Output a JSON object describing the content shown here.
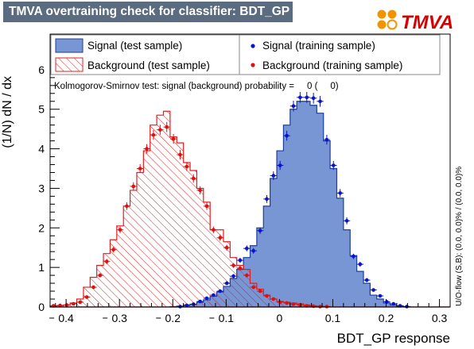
{
  "title": "TMVA overtraining check for classifier: BDT_GP",
  "logo_text": "TMVA",
  "colors": {
    "signal_fill": "#7796d3",
    "signal_line": "#1c3f9a",
    "background_line": "#e02020",
    "signal_points": "#0a14c8",
    "background_points": "#e01010",
    "title_bg": "#5b6b80",
    "logo_orange": "#f29400",
    "logo_red": "#d60000"
  },
  "chart_data": {
    "type": "histogram",
    "xlabel": "BDT_GP response",
    "ylabel": "(1/N) dN / dx",
    "xlim": [
      -0.43,
      0.32
    ],
    "ylim": [
      0,
      6.9
    ],
    "x_ticks": [
      "0.4",
      "0.3",
      "0.2",
      "0.1",
      "0",
      "0.1",
      "0.2",
      "0.3"
    ],
    "x_tick_values": [
      -0.4,
      -0.3,
      -0.2,
      -0.1,
      0,
      0.1,
      0.2,
      0.3
    ],
    "y_ticks": [
      "0",
      "1",
      "2",
      "3",
      "4",
      "5",
      "6"
    ],
    "y_tick_values": [
      0,
      1,
      2,
      3,
      4,
      5,
      6
    ],
    "bin_edges_start": -0.43,
    "bin_width": 0.0125,
    "legend": [
      {
        "label": "Signal (test sample)",
        "style": "filled-box"
      },
      {
        "label": "Signal (training sample)",
        "style": "marker"
      },
      {
        "label": "Background (test sample)",
        "style": "hatched-box"
      },
      {
        "label": "Background (training sample)",
        "style": "marker"
      }
    ],
    "ks_text": "Kolmogorov-Smirnov test: signal (background) probability =     0 (     0)",
    "side_text": "U/O-flow (S,B): (0.0, 0.0)% / (0.0, 0.0)%",
    "series": [
      {
        "name": "Signal (test sample)",
        "values": [
          0,
          0,
          0,
          0,
          0,
          0,
          0,
          0,
          0,
          0,
          0,
          0,
          0,
          0,
          0,
          0,
          0,
          0,
          0.01,
          0.02,
          0.05,
          0.07,
          0.12,
          0.18,
          0.27,
          0.38,
          0.52,
          0.72,
          0.95,
          1.25,
          1.55,
          2.0,
          2.55,
          3.25,
          3.95,
          4.6,
          5.0,
          5.2,
          5.2,
          5.1,
          4.9,
          4.2,
          3.5,
          2.75,
          1.95,
          1.3,
          0.9,
          0.6,
          0.3,
          0.2,
          0.1,
          0.05,
          0.02,
          0.01,
          0,
          0,
          0,
          0,
          0,
          0
        ]
      },
      {
        "name": "Background (test sample)",
        "values": [
          0.02,
          0.03,
          0.05,
          0.1,
          0.2,
          0.5,
          0.75,
          1.05,
          1.35,
          1.7,
          2.05,
          2.55,
          2.95,
          3.4,
          3.95,
          4.6,
          4.85,
          4.95,
          4.3,
          4.15,
          3.65,
          3.45,
          3.0,
          2.65,
          1.95,
          1.95,
          1.65,
          1.25,
          1.05,
          0.95,
          0.6,
          0.45,
          0.3,
          0.2,
          0.14,
          0.12,
          0.1,
          0.08,
          0.05,
          0.03,
          0.02,
          0.01,
          0,
          0,
          0,
          0,
          0,
          0,
          0,
          0,
          0,
          0,
          0,
          0,
          0,
          0,
          0,
          0,
          0,
          0
        ]
      },
      {
        "name": "Signal (training sample)",
        "values": [
          0,
          0,
          0,
          0,
          0,
          0,
          0,
          0,
          0,
          0,
          0,
          0,
          0,
          0,
          0,
          0,
          0,
          0,
          0,
          0.01,
          0.04,
          0.07,
          0.14,
          0.22,
          0.3,
          0.4,
          0.6,
          0.78,
          1.18,
          1.48,
          1.42,
          1.93,
          2.73,
          3.32,
          3.58,
          4.33,
          5.08,
          5.3,
          5.3,
          5.28,
          5.2,
          4.23,
          3.58,
          2.88,
          2.18,
          1.28,
          1.08,
          0.68,
          0.43,
          0.28,
          0.13,
          0.08,
          0.03,
          0.01,
          0,
          0,
          0,
          0,
          0,
          0
        ]
      },
      {
        "name": "Background (training sample)",
        "values": [
          0.03,
          0.04,
          0.05,
          0.08,
          0.12,
          0.25,
          0.5,
          0.8,
          1.15,
          1.45,
          1.95,
          2.55,
          3.05,
          3.5,
          4.0,
          4.35,
          4.48,
          4.55,
          4.25,
          3.85,
          3.55,
          3.25,
          2.95,
          2.55,
          1.95,
          1.75,
          1.5,
          1.05,
          0.98,
          0.8,
          0.5,
          0.4,
          0.28,
          0.2,
          0.12,
          0.1,
          0.07,
          0.05,
          0.03,
          0.02,
          0.01,
          0.01,
          0,
          0,
          0,
          0,
          0,
          0,
          0,
          0,
          0,
          0,
          0,
          0,
          0,
          0,
          0,
          0,
          0,
          0
        ]
      }
    ]
  }
}
